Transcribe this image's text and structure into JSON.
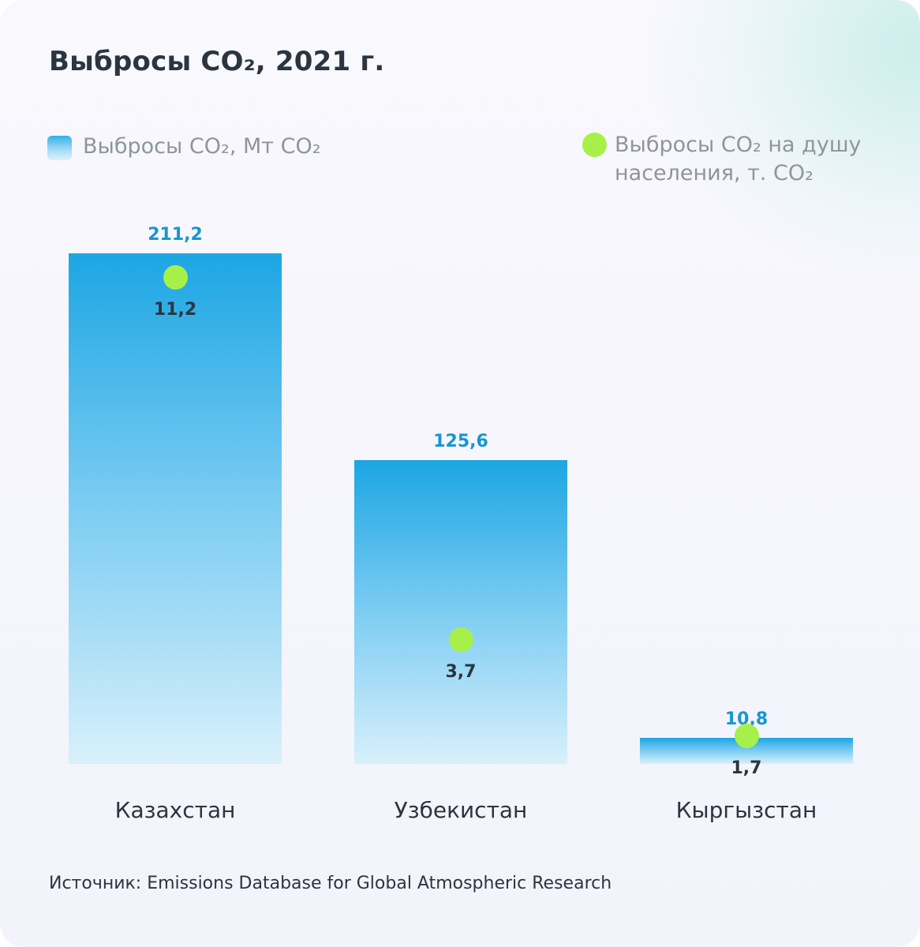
{
  "title": "Выбросы CO₂, 2021 г.",
  "legend": {
    "bars_label": "Выбросы CO₂, Мт CO₂",
    "dots_label": "Выбросы CO₂ на душу населения, т. CO₂"
  },
  "source": "Источник: Emissions Database for Global Atmospheric Research",
  "colors": {
    "bar_top": "#1ca6e3",
    "bar_bottom": "#d8f0fb",
    "dot": "#a7f04a",
    "bar_value_text": "#1796d1",
    "text_dark": "#2b3540",
    "legend_text": "#8e959c"
  },
  "chart_data": {
    "type": "bar",
    "title": "Выбросы CO₂, 2021 г.",
    "categories": [
      "Казахстан",
      "Узбекистан",
      "Кыргызстан"
    ],
    "series": [
      {
        "name": "Выбросы CO₂, Мт CO₂",
        "type": "bar",
        "values": [
          211.2,
          125.6,
          10.8
        ],
        "labels": [
          "211,2",
          "125,6",
          "10,8"
        ]
      },
      {
        "name": "Выбросы CO₂ на душу населения, т. CO₂",
        "type": "scatter",
        "values": [
          11.2,
          3.7,
          1.7
        ],
        "labels": [
          "11,2",
          "3,7",
          "1,7"
        ]
      }
    ],
    "legend_position": "top",
    "grid": false
  }
}
